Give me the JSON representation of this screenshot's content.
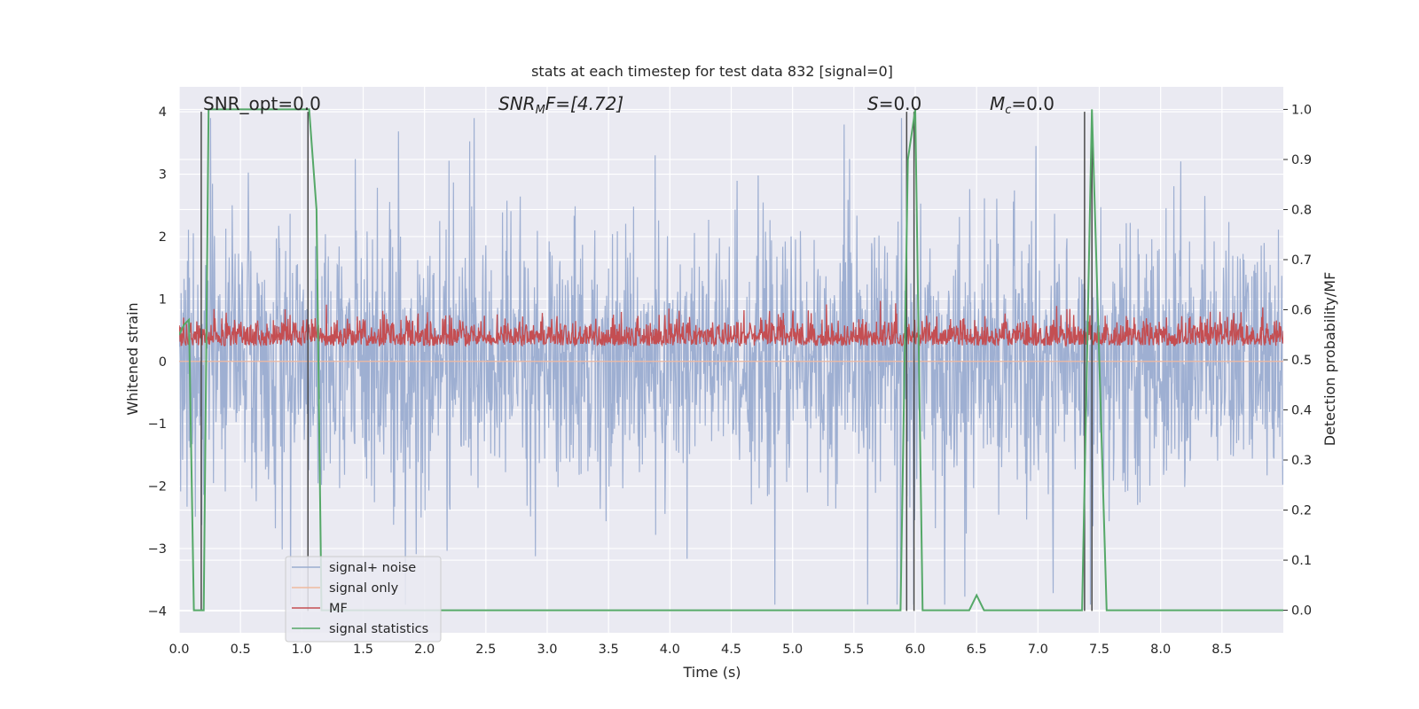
{
  "chart_data": {
    "type": "line",
    "title": "stats at each timestep for test data 832 [signal=0]",
    "xlabel": "Time (s)",
    "ylabel": "Whitened strain",
    "y2label": "Detection probability/MF",
    "xlim": [
      0.0,
      9.0
    ],
    "ylim": [
      -4.35,
      4.4
    ],
    "y2lim": [
      -0.045,
      1.045
    ],
    "x_ticks": [
      0.0,
      0.5,
      1.0,
      1.5,
      2.0,
      2.5,
      3.0,
      3.5,
      4.0,
      4.5,
      5.0,
      5.5,
      6.0,
      6.5,
      7.0,
      7.5,
      8.0,
      8.5
    ],
    "x_tick_labels": [
      "0.0",
      "0.5",
      "1.0",
      "1.5",
      "2.0",
      "2.5",
      "3.0",
      "3.5",
      "4.0",
      "4.5",
      "5.0",
      "5.5",
      "6.0",
      "6.5",
      "7.0",
      "7.5",
      "8.0",
      "8.5"
    ],
    "y_ticks": [
      -4,
      -3,
      -2,
      -1,
      0,
      1,
      2,
      3,
      4
    ],
    "y_tick_labels": [
      "−4",
      "−3",
      "−2",
      "−1",
      "0",
      "1",
      "2",
      "3",
      "4"
    ],
    "y2_ticks": [
      0.0,
      0.1,
      0.2,
      0.3,
      0.4,
      0.5,
      0.6,
      0.7,
      0.8,
      0.9,
      1.0
    ],
    "y2_tick_labels": [
      "0.0",
      "0.1",
      "0.2",
      "0.3",
      "0.4",
      "0.5",
      "0.6",
      "0.7",
      "0.8",
      "0.9",
      "1.0"
    ],
    "grid": true,
    "legend_position": "lower-left",
    "annotations": {
      "snr_opt": "SNR_opt=0.0",
      "snr_mf_main": "SNR",
      "snr_mf_sub": "M",
      "snr_mf_rest": "F=[4.72]",
      "s_main": "S",
      "s_rest": "=0.0",
      "mc_main": "M",
      "mc_sub": "c",
      "mc_rest": "=0.0"
    },
    "series": [
      {
        "name": "signal+ noise",
        "color": "#9aacd0",
        "axis": "left",
        "sample_rate": 250,
        "typical_amplitude": 1.6,
        "peak_amplitude": 3.5
      },
      {
        "name": "signal only",
        "color": "#f0b9a0",
        "axis": "left",
        "values": "zero (no signal)"
      },
      {
        "name": "MF",
        "color": "#c44e52",
        "axis": "right",
        "sample_rate": 250,
        "baseline": 0.55,
        "peak": 0.62
      },
      {
        "name": "signal statistics",
        "color": "#55a868",
        "axis": "right",
        "x": [
          0.0,
          0.04,
          0.08,
          0.12,
          0.2,
          0.24,
          1.0,
          1.06,
          1.12,
          1.16,
          1.2,
          1.4,
          5.5,
          5.88,
          5.94,
          6.0,
          6.06,
          6.12,
          6.44,
          6.5,
          6.56,
          7.0,
          7.36,
          7.44,
          7.5,
          7.56,
          9.0
        ],
        "y": [
          0.55,
          0.57,
          0.58,
          0.0,
          0.0,
          1.0,
          1.0,
          1.0,
          0.8,
          0.0,
          0.0,
          0.0,
          0.0,
          0.0,
          0.9,
          1.0,
          0.0,
          0.0,
          0.0,
          0.03,
          0.0,
          0.0,
          0.0,
          1.0,
          0.5,
          0.0,
          0.0
        ]
      }
    ],
    "vertical_markers": [
      0.18,
      1.05,
      5.93,
      5.99,
      7.38,
      7.44
    ]
  }
}
